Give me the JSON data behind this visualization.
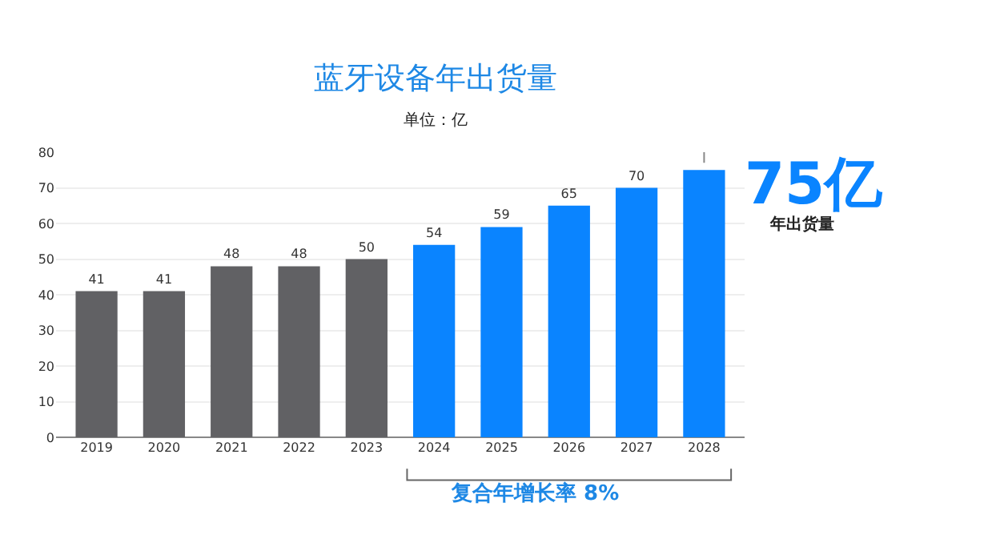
{
  "chart_data": {
    "type": "bar",
    "title": "蓝牙设备年出货量",
    "subtitle": "单位：亿",
    "categories": [
      "2019",
      "2020",
      "2021",
      "2022",
      "2023",
      "2024",
      "2025",
      "2026",
      "2027",
      "2028"
    ],
    "values": [
      41,
      41,
      48,
      48,
      50,
      54,
      59,
      65,
      70,
      75
    ],
    "value_labels": [
      "41",
      "41",
      "48",
      "48",
      "50",
      "54",
      "59",
      "65",
      "70",
      null
    ],
    "colors": [
      "#616164",
      "#616164",
      "#616164",
      "#616164",
      "#616164",
      "#0a84ff",
      "#0a84ff",
      "#0a84ff",
      "#0a84ff",
      "#0a84ff"
    ],
    "ylim": [
      0,
      80
    ],
    "yticks": [
      0,
      10,
      20,
      30,
      40,
      50,
      60,
      70,
      80
    ],
    "grid": "y",
    "annotations": [
      {
        "text": "75亿",
        "x": "2028",
        "y": 75
      },
      "年出货量",
      "复合年增长率 8%"
    ]
  }
}
